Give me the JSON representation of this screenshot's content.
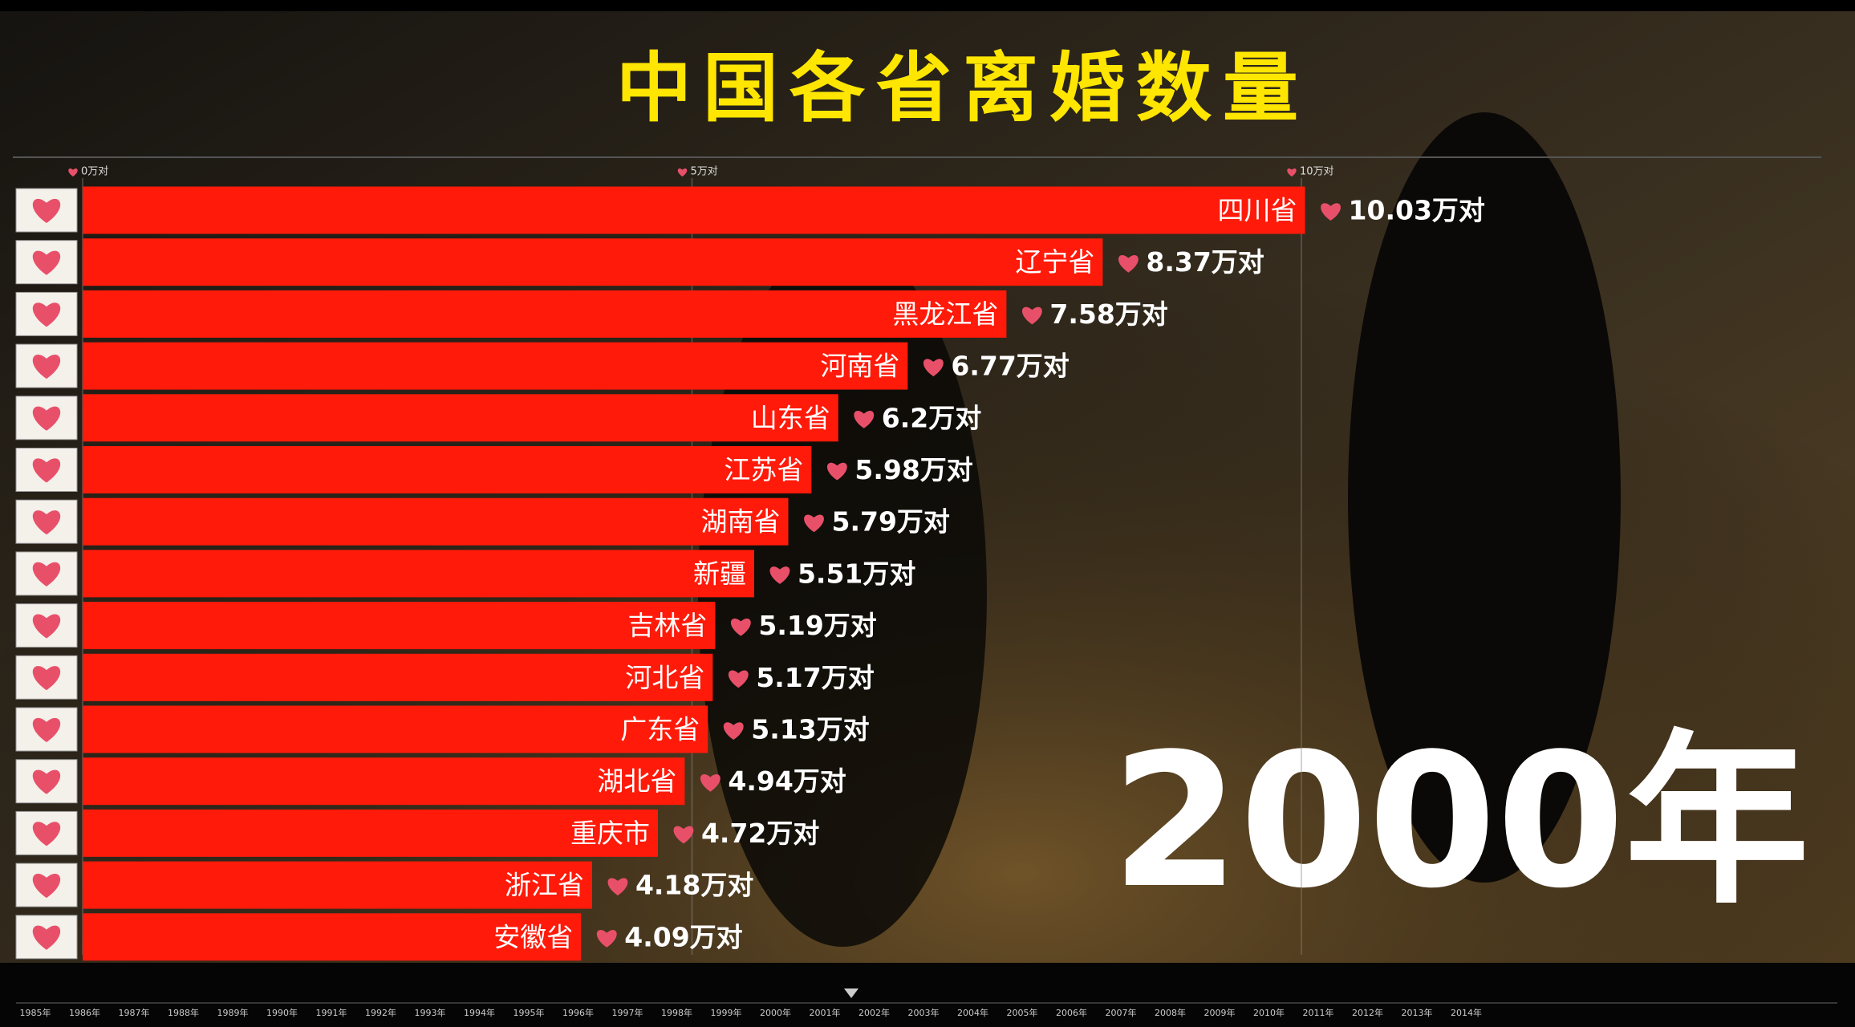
{
  "chart_data": {
    "type": "bar",
    "orientation": "horizontal",
    "title": "中国各省离婚数量",
    "annotation": "2000年",
    "categories": [
      "四川省",
      "辽宁省",
      "黑龙江省",
      "河南省",
      "山东省",
      "江苏省",
      "湖南省",
      "新疆",
      "吉林省",
      "河北省",
      "广东省",
      "湖北省",
      "重庆市",
      "浙江省",
      "安徽省"
    ],
    "values": [
      10.03,
      8.37,
      7.58,
      6.77,
      6.2,
      5.98,
      5.79,
      5.51,
      5.19,
      5.17,
      5.13,
      4.94,
      4.72,
      4.18,
      4.09
    ],
    "value_labels": [
      "10.03万对",
      "8.37万对",
      "7.58万对",
      "6.77万对",
      "6.2万对",
      "5.98万对",
      "5.79万对",
      "5.51万对",
      "5.19万对",
      "5.17万对",
      "5.13万对",
      "4.94万对",
      "4.72万对",
      "4.18万对",
      "4.09万对"
    ],
    "color": "#ff1a0a",
    "xlim": [
      0,
      10
    ],
    "xticks": [
      {
        "value": 0,
        "label": "0万对"
      },
      {
        "value": 5,
        "label": "5万对"
      },
      {
        "value": 10,
        "label": "10万对"
      }
    ],
    "grid": true,
    "timeline": [
      "1985年",
      "1986年",
      "1987年",
      "1988年",
      "1989年",
      "1990年",
      "1991年",
      "1992年",
      "1993年",
      "1994年",
      "1995年",
      "1996年",
      "1997年",
      "1998年",
      "1999年",
      "2000年",
      "2001年",
      "2002年",
      "2003年",
      "2004年",
      "2005年",
      "2006年",
      "2007年",
      "2008年",
      "2009年",
      "2010年",
      "2011年",
      "2012年",
      "2013年",
      "2014年"
    ]
  }
}
